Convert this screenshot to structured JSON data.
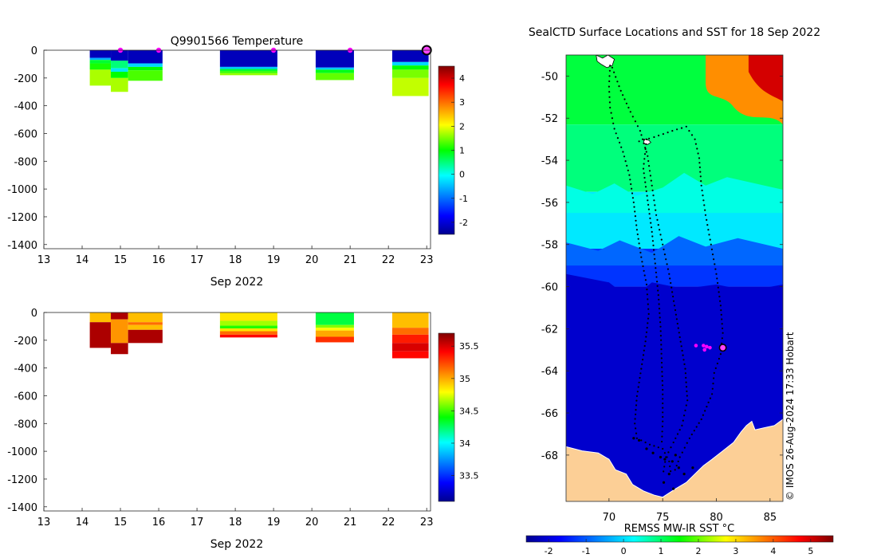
{
  "chart_data": [
    {
      "id": "temperature",
      "type": "heatmap",
      "title": "Q9901566  Temperature",
      "xlabel": "Sep 2022",
      "ylabel": "",
      "xlim": [
        13,
        23.1
      ],
      "ylim": [
        -1430,
        0
      ],
      "xticks": [
        13,
        14,
        15,
        16,
        17,
        18,
        19,
        20,
        21,
        22,
        23
      ],
      "yticks": [
        0,
        -200,
        -400,
        -600,
        -800,
        -1000,
        -1200,
        -1400
      ],
      "colorbar": {
        "min": -2.5,
        "max": 4.5,
        "ticks": [
          -2,
          -1,
          0,
          1,
          2,
          3,
          4
        ]
      },
      "profiles": [
        {
          "x0": 14.2,
          "x1": 14.75,
          "depth": 255,
          "layers": [
            [
              0,
              55,
              -2.2
            ],
            [
              55,
              70,
              -0.6
            ],
            [
              70,
              95,
              0.8
            ],
            [
              95,
              140,
              1.1
            ],
            [
              140,
              255,
              1.7
            ]
          ]
        },
        {
          "x0": 14.75,
          "x1": 15.2,
          "depth": 300,
          "layers": [
            [
              0,
              75,
              -2.2
            ],
            [
              75,
              130,
              0.5
            ],
            [
              130,
              155,
              -0.2
            ],
            [
              155,
              200,
              1.0
            ],
            [
              200,
              300,
              1.7
            ]
          ]
        },
        {
          "x0": 15.2,
          "x1": 16.1,
          "depth": 220,
          "layers": [
            [
              0,
              95,
              -2.2
            ],
            [
              95,
              120,
              -0.3
            ],
            [
              120,
              145,
              1.0
            ],
            [
              145,
              220,
              1.3
            ]
          ]
        },
        {
          "x0": 17.6,
          "x1": 19.1,
          "depth": 180,
          "layers": [
            [
              0,
              120,
              -2.2
            ],
            [
              120,
              135,
              -0.4
            ],
            [
              135,
              150,
              0.8
            ],
            [
              150,
              165,
              1.2
            ],
            [
              165,
              180,
              1.6
            ]
          ]
        },
        {
          "x0": 20.1,
          "x1": 21.1,
          "depth": 215,
          "layers": [
            [
              0,
              125,
              -2.2
            ],
            [
              125,
              140,
              -0.4
            ],
            [
              140,
              165,
              0.9
            ],
            [
              165,
              215,
              1.4
            ]
          ]
        },
        {
          "x0": 22.1,
          "x1": 23.05,
          "depth": 330,
          "layers": [
            [
              0,
              85,
              -2.2
            ],
            [
              85,
              110,
              -0.3
            ],
            [
              110,
              140,
              1.0
            ],
            [
              140,
              200,
              1.5
            ],
            [
              200,
              330,
              1.8
            ]
          ]
        }
      ],
      "markers": [
        15,
        16,
        19,
        21,
        23
      ],
      "current_marker": 23
    },
    {
      "id": "salinity",
      "type": "heatmap",
      "title": "",
      "xlabel": "Sep 2022",
      "ylabel": "",
      "xlim": [
        13,
        23.1
      ],
      "ylim": [
        -1430,
        0
      ],
      "xticks": [
        13,
        14,
        15,
        16,
        17,
        18,
        19,
        20,
        21,
        22,
        23
      ],
      "yticks": [
        0,
        -200,
        -400,
        -600,
        -800,
        -1000,
        -1200,
        -1400
      ],
      "colorbar": {
        "min": 33.1,
        "max": 35.7,
        "ticks": [
          33.5,
          34,
          34.5,
          35,
          35.5
        ]
      },
      "profiles": [
        {
          "x0": 14.2,
          "x1": 14.75,
          "depth": 255,
          "layers": [
            [
              0,
              70,
              34.95
            ],
            [
              70,
              255,
              35.6
            ]
          ]
        },
        {
          "x0": 14.75,
          "x1": 15.2,
          "depth": 300,
          "layers": [
            [
              0,
              50,
              35.6
            ],
            [
              50,
              220,
              35.05
            ],
            [
              220,
              300,
              35.6
            ]
          ]
        },
        {
          "x0": 15.2,
          "x1": 16.1,
          "depth": 220,
          "layers": [
            [
              0,
              70,
              34.95
            ],
            [
              70,
              90,
              35.15
            ],
            [
              90,
              125,
              34.95
            ],
            [
              125,
              220,
              35.6
            ]
          ]
        },
        {
          "x0": 17.6,
          "x1": 19.1,
          "depth": 180,
          "layers": [
            [
              0,
              60,
              34.85
            ],
            [
              60,
              95,
              34.65
            ],
            [
              95,
              115,
              34.45
            ],
            [
              115,
              135,
              34.85
            ],
            [
              135,
              160,
              35.15
            ],
            [
              160,
              180,
              35.4
            ]
          ]
        },
        {
          "x0": 20.1,
          "x1": 21.1,
          "depth": 215,
          "layers": [
            [
              0,
              90,
              34.3
            ],
            [
              90,
              110,
              34.6
            ],
            [
              110,
              130,
              34.8
            ],
            [
              130,
              175,
              35.0
            ],
            [
              175,
              215,
              35.3
            ]
          ]
        },
        {
          "x0": 22.1,
          "x1": 23.05,
          "depth": 330,
          "layers": [
            [
              0,
              110,
              34.95
            ],
            [
              110,
              160,
              35.15
            ],
            [
              160,
              220,
              35.35
            ],
            [
              220,
              280,
              35.5
            ],
            [
              280,
              330,
              35.4
            ]
          ]
        }
      ]
    },
    {
      "id": "sst-map",
      "type": "heatmap",
      "title": "SealCTD Surface Locations and SST for 18 Sep 2022",
      "colorbar_label": "REMSS MW-IR SST °C",
      "credit": "© IMOS 26-Aug-2024 17:33 Hobart",
      "xlim": [
        66,
        86.2
      ],
      "ylim": [
        -70.2,
        -49
      ],
      "xticks": [
        70,
        75,
        80,
        85
      ],
      "yticks": [
        -50,
        -52,
        -54,
        -56,
        -58,
        -60,
        -62,
        -64,
        -66,
        -68
      ],
      "colorbar": {
        "min": -2.6,
        "max": 5.6,
        "ticks": [
          -2,
          -1,
          0,
          1,
          2,
          3,
          4,
          5
        ]
      },
      "sst_bands": [
        {
          "lat_top": -49,
          "lat_bottom": -52.3,
          "sst": 1.2
        },
        {
          "lat_top": -52.3,
          "lat_bottom": -55.5,
          "sst": 0.9
        },
        {
          "lat_top": -55.5,
          "lat_bottom": -58.2,
          "sst": 0.1
        },
        {
          "lat_top": -58.2,
          "lat_bottom": -60.0,
          "sst": -1.3
        },
        {
          "lat_top": -60.0,
          "lat_bottom": -70.2,
          "sst": -2.1
        }
      ],
      "warm_patch": {
        "lon_min": 79,
        "lon_max": 86.2,
        "lat_top": -49,
        "lat_bottom": -51.2,
        "sst": 3.6
      },
      "hot_patch": {
        "lon_min": 83,
        "lon_max": 86.2,
        "lat_top": -49,
        "lat_bottom": -50.6,
        "sst": 5.0
      },
      "tracks": [
        [
          [
            70.1,
            -49.5
          ],
          [
            70.0,
            -50.5
          ],
          [
            70.1,
            -51.5
          ],
          [
            70.5,
            -52.5
          ],
          [
            71.3,
            -53.6
          ],
          [
            71.9,
            -54.7
          ],
          [
            72.3,
            -56.0
          ],
          [
            72.6,
            -57.3
          ],
          [
            73.0,
            -58.6
          ],
          [
            73.5,
            -59.9
          ],
          [
            73.7,
            -61.3
          ],
          [
            73.4,
            -62.6
          ],
          [
            73.0,
            -63.9
          ],
          [
            72.6,
            -65.2
          ],
          [
            72.4,
            -66.5
          ],
          [
            72.6,
            -67.2
          ],
          [
            73.8,
            -67.5
          ],
          [
            75.0,
            -67.7
          ],
          [
            75.6,
            -68.3
          ],
          [
            75.8,
            -69.0
          ]
        ],
        [
          [
            70.3,
            -49.6
          ],
          [
            71.1,
            -50.7
          ],
          [
            72.0,
            -51.7
          ],
          [
            72.9,
            -52.6
          ],
          [
            73.6,
            -53.8
          ],
          [
            74.0,
            -55.2
          ],
          [
            74.4,
            -56.6
          ],
          [
            75.0,
            -58.0
          ],
          [
            75.6,
            -59.4
          ],
          [
            76.1,
            -60.9
          ],
          [
            76.6,
            -62.4
          ],
          [
            77.1,
            -63.9
          ],
          [
            77.3,
            -65.4
          ],
          [
            76.8,
            -66.6
          ],
          [
            76.0,
            -67.4
          ],
          [
            75.3,
            -68.1
          ],
          [
            75.0,
            -69.0
          ]
        ],
        [
          [
            72.8,
            -53.1
          ],
          [
            74.2,
            -52.9
          ],
          [
            75.9,
            -52.6
          ],
          [
            77.2,
            -52.4
          ],
          [
            78.0,
            -53.0
          ],
          [
            78.4,
            -53.9
          ],
          [
            78.6,
            -55.2
          ],
          [
            79.0,
            -56.6
          ],
          [
            79.5,
            -58.0
          ],
          [
            80.0,
            -59.4
          ],
          [
            80.4,
            -60.9
          ],
          [
            80.6,
            -62.2
          ],
          [
            80.4,
            -63.2
          ],
          [
            79.8,
            -64.1
          ],
          [
            79.6,
            -65.1
          ],
          [
            78.6,
            -66.3
          ],
          [
            77.5,
            -67.2
          ],
          [
            76.6,
            -68.1
          ],
          [
            76.0,
            -68.9
          ]
        ],
        [
          [
            73.5,
            -53.0
          ],
          [
            73.2,
            -54.4
          ],
          [
            73.6,
            -55.9
          ],
          [
            74.0,
            -57.4
          ],
          [
            74.3,
            -58.9
          ],
          [
            74.6,
            -60.4
          ],
          [
            74.8,
            -61.9
          ],
          [
            74.9,
            -63.4
          ],
          [
            75.0,
            -64.9
          ],
          [
            75.0,
            -66.4
          ],
          [
            74.9,
            -67.6
          ]
        ]
      ],
      "magenta_points": [
        [
          78.1,
          -62.8
        ],
        [
          78.8,
          -62.8
        ],
        [
          79.1,
          -62.85
        ],
        [
          79.4,
          -62.9
        ],
        [
          78.9,
          -63.0
        ]
      ],
      "current_position": [
        80.6,
        -62.9
      ]
    }
  ]
}
